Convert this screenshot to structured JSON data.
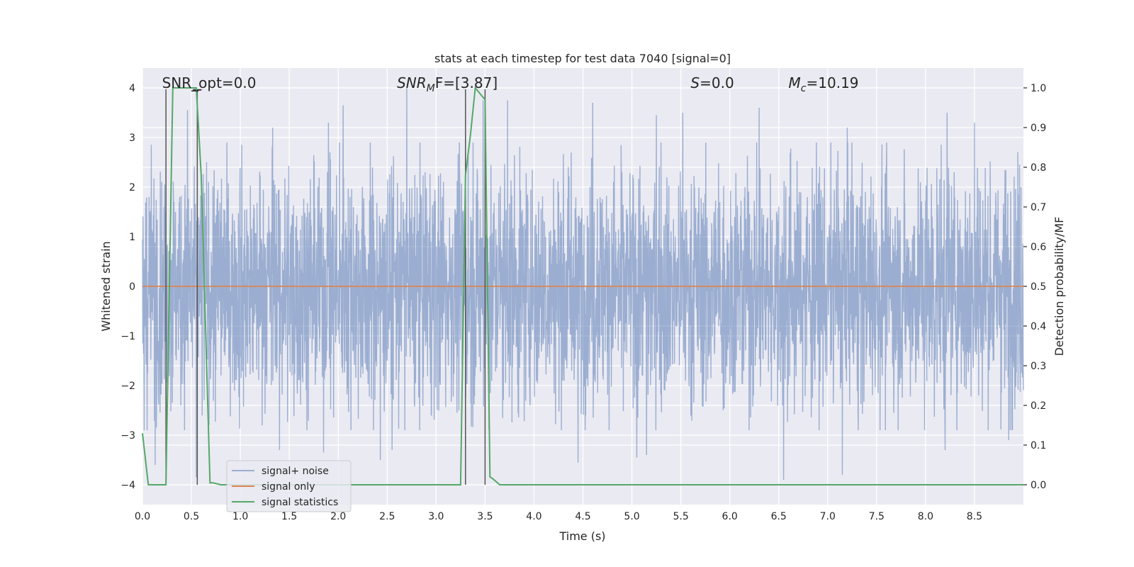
{
  "chart_data": {
    "type": "line",
    "title": "stats at each timestep for test data 7040 [signal=0]",
    "xlabel": "Time (s)",
    "ylabel": "Whitened strain",
    "y2label": "Detection probability/MF",
    "xlim": [
      0.0,
      9.0
    ],
    "ylim": [
      -4.4,
      4.4
    ],
    "y2lim": [
      -0.05,
      1.05
    ],
    "xticks": [
      0.0,
      0.5,
      1.0,
      1.5,
      2.0,
      2.5,
      3.0,
      3.5,
      4.0,
      4.5,
      5.0,
      5.5,
      6.0,
      6.5,
      7.0,
      7.5,
      8.0,
      8.5
    ],
    "xtick_labels": [
      "0.0",
      "0.5",
      "1.0",
      "1.5",
      "2.0",
      "2.5",
      "3.0",
      "3.5",
      "4.0",
      "4.5",
      "5.0",
      "5.5",
      "6.0",
      "6.5",
      "7.0",
      "7.5",
      "8.0",
      "8.5"
    ],
    "yticks": [
      -4,
      -3,
      -2,
      -1,
      0,
      1,
      2,
      3,
      4
    ],
    "ytick_labels": [
      "−4",
      "−3",
      "−2",
      "−1",
      "0",
      "1",
      "2",
      "3",
      "4"
    ],
    "y2ticks": [
      0.0,
      0.1,
      0.2,
      0.3,
      0.4,
      0.5,
      0.6,
      0.7,
      0.8,
      0.9,
      1.0
    ],
    "y2tick_labels": [
      "0.0",
      "0.1",
      "0.2",
      "0.3",
      "0.4",
      "0.5",
      "0.6",
      "0.7",
      "0.8",
      "0.9",
      "1.0"
    ],
    "grid": true,
    "legend_position": "lower-left",
    "annotations": [
      {
        "text": "SNR_opt=0.0",
        "x": 0.2,
        "italic": false
      },
      {
        "text": "SNR",
        "sub": "M",
        "tail": "F=[3.87]",
        "x": 2.6,
        "italic": true
      },
      {
        "text": "S",
        "tail": "=0.0",
        "x": 5.6,
        "italic": true
      },
      {
        "text": "M",
        "sub": "c",
        "tail": "=10.19",
        "x": 6.6,
        "italic": true
      }
    ],
    "vertical_markers": [
      0.24,
      0.56,
      3.3,
      3.5
    ],
    "series": [
      {
        "name": "signal+ noise",
        "color": "#4c72b0",
        "axis": "left",
        "kind": "noise",
        "amplitude_rms": 1.2,
        "peaks": [
          {
            "x": 0.46,
            "y": 3.55
          },
          {
            "x": 0.13,
            "y": -3.6
          },
          {
            "x": 0.55,
            "y": -3.85
          },
          {
            "x": 1.33,
            "y": 3.2
          },
          {
            "x": 1.9,
            "y": 3.3
          },
          {
            "x": 2.05,
            "y": 3.65
          },
          {
            "x": 2.7,
            "y": 4.0
          },
          {
            "x": 3.48,
            "y": 3.75
          },
          {
            "x": 3.73,
            "y": 3.75
          },
          {
            "x": 4.6,
            "y": 3.7
          },
          {
            "x": 5.25,
            "y": 3.45
          },
          {
            "x": 5.52,
            "y": 3.5
          },
          {
            "x": 6.3,
            "y": 3.6
          },
          {
            "x": 7.2,
            "y": 3.2
          },
          {
            "x": 8.22,
            "y": 3.5
          },
          {
            "x": 8.5,
            "y": 3.3
          },
          {
            "x": 8.85,
            "y": 3.1
          },
          {
            "x": 2.43,
            "y": -3.5
          },
          {
            "x": 2.55,
            "y": -3.3
          },
          {
            "x": 4.45,
            "y": -3.55
          },
          {
            "x": 5.05,
            "y": -3.45
          },
          {
            "x": 5.15,
            "y": -3.4
          },
          {
            "x": 6.55,
            "y": -3.9
          },
          {
            "x": 7.15,
            "y": -3.8
          },
          {
            "x": 8.2,
            "y": -3.3
          },
          {
            "x": 8.85,
            "y": -3.1
          },
          {
            "x": 1.4,
            "y": -3.3
          },
          {
            "x": 1.85,
            "y": -3.35
          }
        ]
      },
      {
        "name": "signal only",
        "color": "#dd8452",
        "axis": "left",
        "x": [
          0.0,
          9.0
        ],
        "y": [
          0.0,
          0.0
        ]
      },
      {
        "name": "signal statistics",
        "color": "#55a868",
        "axis": "right",
        "x": [
          0.0,
          0.06,
          0.12,
          0.24,
          0.25,
          0.31,
          0.55,
          0.6,
          0.69,
          0.72,
          0.8,
          1.0,
          3.25,
          3.3,
          3.35,
          3.4,
          3.5,
          3.55,
          3.58,
          3.65,
          9.0
        ],
        "y": [
          0.13,
          0.0,
          0.0,
          0.0,
          0.15,
          1.0,
          1.0,
          0.78,
          0.005,
          0.005,
          0.0,
          0.0,
          0.0,
          0.78,
          0.88,
          1.0,
          0.97,
          0.02,
          0.015,
          0.0,
          0.0
        ]
      }
    ]
  }
}
